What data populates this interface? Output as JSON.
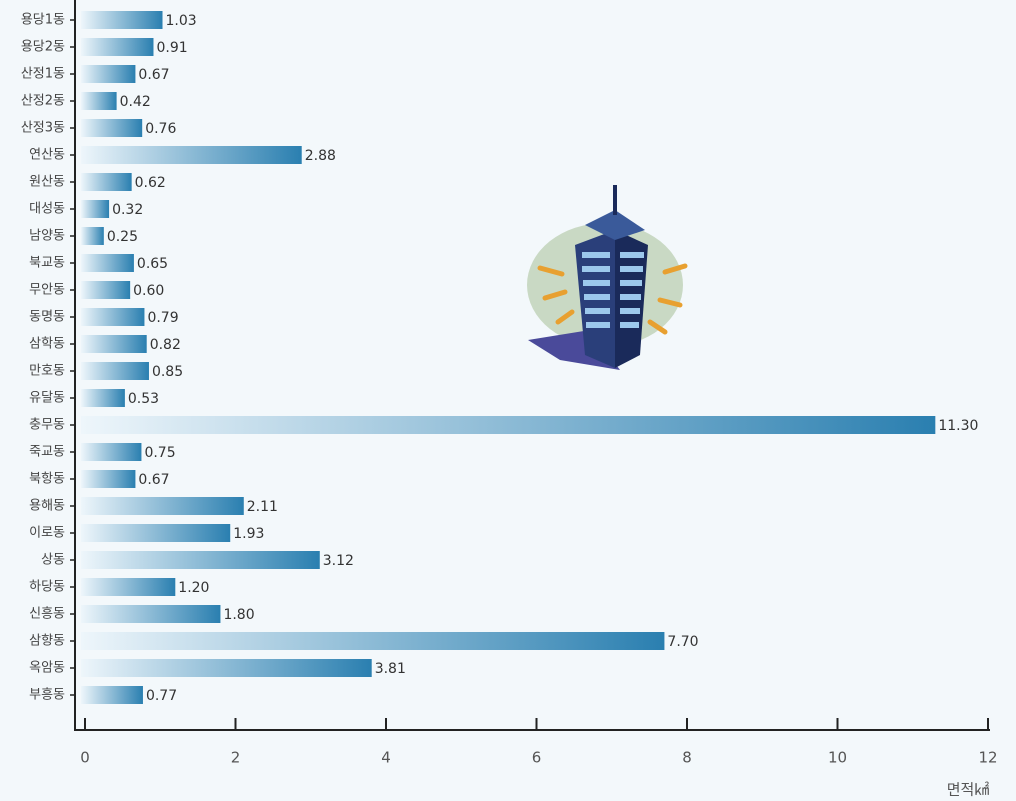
{
  "chart_data": {
    "type": "bar",
    "orientation": "horizontal",
    "categories": [
      "용당1동",
      "용당2동",
      "산정1동",
      "산정2동",
      "산정3동",
      "연산동",
      "원산동",
      "대성동",
      "남양동",
      "북교동",
      "무안동",
      "동명동",
      "삼학동",
      "만호동",
      "유달동",
      "충무동",
      "죽교동",
      "북항동",
      "용해동",
      "이로동",
      "상동",
      "하당동",
      "신흥동",
      "삼향동",
      "옥암동",
      "부흥동"
    ],
    "values": [
      1.03,
      0.91,
      0.67,
      0.42,
      0.76,
      2.88,
      0.62,
      0.32,
      0.25,
      0.65,
      0.6,
      0.79,
      0.82,
      0.85,
      0.53,
      11.3,
      0.75,
      0.67,
      2.11,
      1.93,
      3.12,
      1.2,
      1.8,
      7.7,
      3.81,
      0.77
    ],
    "value_labels": [
      "1.03",
      "0.91",
      "0.67",
      "0.42",
      "0.76",
      "2.88",
      "0.62",
      "0.32",
      "0.25",
      "0.65",
      "0.60",
      "0.79",
      "0.82",
      "0.85",
      "0.53",
      "11.30",
      "0.75",
      "0.67",
      "2.11",
      "1.93",
      "3.12",
      "1.20",
      "1.80",
      "7.70",
      "3.81",
      "0.77"
    ],
    "color": "#2a7fb0",
    "xlim": [
      0,
      12
    ],
    "xticks": [
      0,
      2,
      4,
      6,
      8,
      10,
      12
    ],
    "x_label": "면적㎢"
  }
}
